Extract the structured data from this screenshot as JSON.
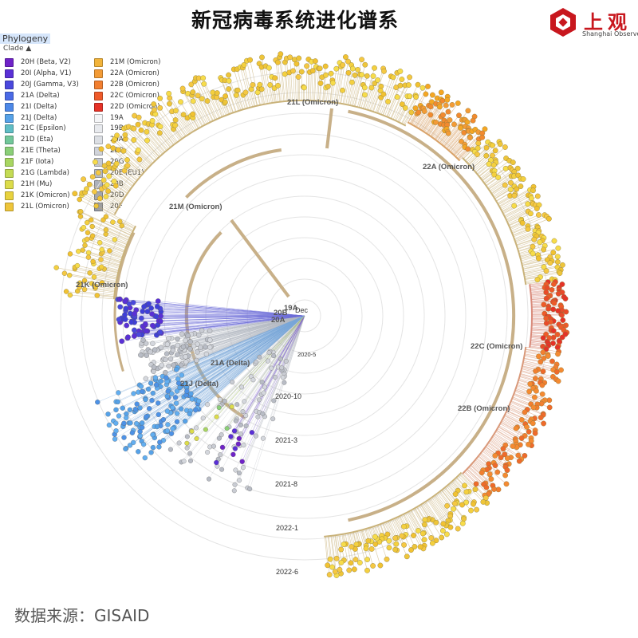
{
  "header": {
    "title": "新冠病毒系统进化谱系"
  },
  "logo": {
    "text_zh": "上观",
    "text_en": "Shanghai Observer"
  },
  "panel": {
    "title": "Phylogeny",
    "clade_label": "Clade ▲"
  },
  "legend": {
    "left": [
      {
        "label": "20H (Beta, V2)",
        "color": "#6f22c8"
      },
      {
        "label": "20I (Alpha, V1)",
        "color": "#5a30d6"
      },
      {
        "label": "20J (Gamma, V3)",
        "color": "#4a48dd"
      },
      {
        "label": "21A (Delta)",
        "color": "#4a6ae6"
      },
      {
        "label": "21I (Delta)",
        "color": "#4d88e8"
      },
      {
        "label": "21J (Delta)",
        "color": "#56a2e8"
      },
      {
        "label": "21C (Epsilon)",
        "color": "#5fbdc5"
      },
      {
        "label": "21D (Eta)",
        "color": "#72c79a"
      },
      {
        "label": "21E (Theta)",
        "color": "#8bcf78"
      },
      {
        "label": "21F (Iota)",
        "color": "#a8d661"
      },
      {
        "label": "21G (Lambda)",
        "color": "#c4db54"
      },
      {
        "label": "21H (Mu)",
        "color": "#dcdc4a"
      },
      {
        "label": "21K (Omicron)",
        "color": "#e8d23e"
      },
      {
        "label": "21L (Omicron)",
        "color": "#eec53a"
      }
    ],
    "right": [
      {
        "label": "21M (Omicron)",
        "color": "#f2b33a"
      },
      {
        "label": "22A (Omicron)",
        "color": "#f39b36"
      },
      {
        "label": "22B (Omicron)",
        "color": "#f27f30"
      },
      {
        "label": "22C (Omicron)",
        "color": "#ef5a2a"
      },
      {
        "label": "22D (Omicron)",
        "color": "#e63227"
      },
      {
        "label": "19A",
        "color": "#f4f5f7"
      },
      {
        "label": "19B",
        "color": "#e8eaee"
      },
      {
        "label": "20A",
        "color": "#dcdfe4"
      },
      {
        "label": "20C",
        "color": "#d0d3da"
      },
      {
        "label": "20G",
        "color": "#c4c8d0"
      },
      {
        "label": "20E (EU1)",
        "color": "#b8bdc6"
      },
      {
        "label": "20B",
        "color": "#acb1bb"
      },
      {
        "label": "20D",
        "color": "#a1a6b1"
      },
      {
        "label": "20F",
        "color": "#969ba7"
      }
    ]
  },
  "tree": {
    "clade_labels": [
      "21L (Omicron)",
      "22A (Omicron)",
      "21M (Omicron)",
      "21K (Omicron)",
      "22C (Omicron)",
      "22B (Omicron)",
      "21A (Delta)",
      "21J (Delta)",
      "20A",
      "20B",
      "19A"
    ],
    "time_labels": [
      "Dec",
      "2020-5",
      "2020-10",
      "2021-3",
      "2021-8",
      "2022-1",
      "2022-6"
    ]
  },
  "footer": {
    "source": "数据来源：GISAID"
  }
}
